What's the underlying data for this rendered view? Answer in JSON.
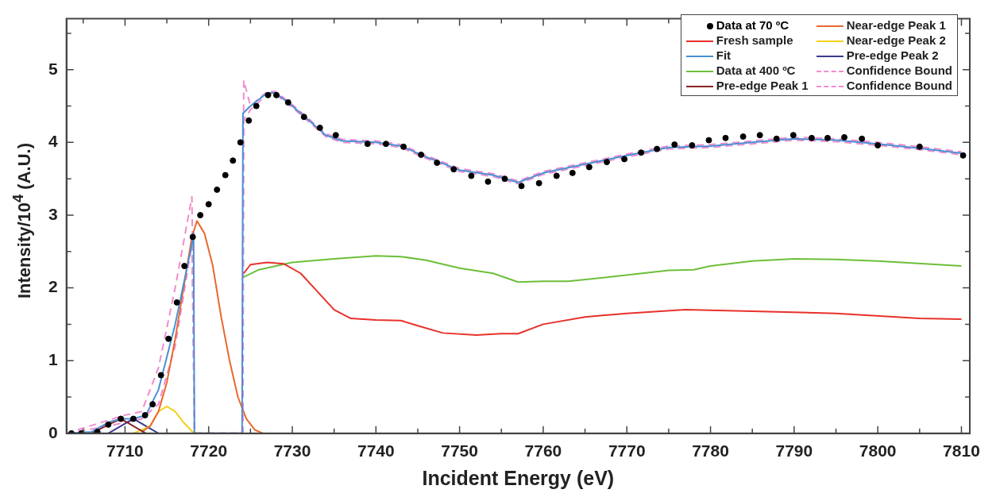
{
  "chart_data": {
    "type": "line",
    "xlabel": "Incident Energy (eV)",
    "ylabel": "Intensity/10$^{4}$ (A.U.)",
    "xlim": [
      7703,
      7811
    ],
    "ylim": [
      0,
      5.7
    ],
    "xticks": [
      {
        "value": 7705,
        "label": null
      },
      7710,
      {
        "value": 7715,
        "label": null
      },
      7720,
      {
        "value": 7725,
        "label": null
      },
      7730,
      {
        "value": 7735,
        "label": null
      },
      7740,
      {
        "value": 7745,
        "label": null
      },
      7750,
      {
        "value": 7755,
        "label": null
      },
      7760,
      {
        "value": 7765,
        "label": null
      },
      7770,
      {
        "value": 7775,
        "label": null
      },
      7780,
      {
        "value": 7785,
        "label": null
      },
      7790,
      {
        "value": 7795,
        "label": null
      },
      7800,
      {
        "value": 7805,
        "label": null
      },
      7810
    ],
    "yticks": [
      0,
      {
        "value": 0.5,
        "label": null
      },
      1,
      {
        "value": 1.5,
        "label": null
      },
      2,
      {
        "value": 2.5,
        "label": null
      },
      3,
      {
        "value": 3.5,
        "label": null
      },
      4,
      {
        "value": 4.5,
        "label": null
      },
      5,
      {
        "value": 5.5,
        "label": null
      }
    ],
    "legend": "top right",
    "series": [
      {
        "name": "Data at 70 ºC",
        "type": "scatter",
        "marker": "circle",
        "color": "#000000",
        "x": [
          7703.6,
          7704.8,
          7706.7,
          7708,
          7709.5,
          7711,
          7712.4,
          7713.3,
          7714.3,
          7715.2,
          7716.2,
          7717.1,
          7718.1,
          7719,
          7720,
          7721,
          7722,
          7722.9,
          7723.8,
          7724.8,
          7725.7,
          7727.1,
          7728.1,
          7729.5,
          7731.4,
          7733.3,
          7735.2,
          7739,
          7741.2,
          7743.3,
          7745.4,
          7747.3,
          7749.3,
          7751.4,
          7753.4,
          7755.4,
          7757.4,
          7759.5,
          7761.6,
          7763.5,
          7765.5,
          7767.6,
          7769.7,
          7771.7,
          7773.6,
          7775.7,
          7777.8,
          7779.8,
          7781.8,
          7783.9,
          7785.9,
          7787.9,
          7789.9,
          7792.1,
          7794,
          7796,
          7798.1,
          7800,
          7805,
          7810.2
        ],
        "values": [
          0,
          0,
          0.02,
          0.12,
          0.2,
          0.2,
          0.25,
          0.4,
          0.8,
          1.3,
          1.8,
          2.3,
          2.7,
          3.0,
          3.15,
          3.35,
          3.55,
          3.75,
          4.0,
          4.3,
          4.5,
          4.65,
          4.65,
          4.55,
          4.35,
          4.2,
          4.1,
          3.98,
          3.98,
          3.94,
          3.83,
          3.72,
          3.63,
          3.54,
          3.46,
          3.5,
          3.4,
          3.44,
          3.54,
          3.58,
          3.66,
          3.73,
          3.77,
          3.86,
          3.91,
          3.97,
          3.96,
          4.03,
          4.06,
          4.08,
          4.1,
          4.05,
          4.1,
          4.06,
          4.06,
          4.07,
          4.05,
          3.96,
          3.94,
          3.82
        ]
      },
      {
        "name": "Fresh sample",
        "color": "#e8312a",
        "x": [
          7724.2,
          7725,
          7727,
          7729,
          7731,
          7733,
          7735,
          7737,
          7740,
          7743,
          7745,
          7748,
          7752,
          7755,
          7757,
          7760,
          7765,
          7770,
          7777,
          7785,
          7795,
          7805,
          7810
        ],
        "values": [
          2.2,
          2.32,
          2.35,
          2.33,
          2.2,
          1.95,
          1.7,
          1.58,
          1.56,
          1.55,
          1.48,
          1.38,
          1.35,
          1.37,
          1.37,
          1.5,
          1.6,
          1.65,
          1.7,
          1.68,
          1.65,
          1.58,
          1.57
        ]
      },
      {
        "name": "Fit",
        "color": "#4a8fd4",
        "x": [
          7703,
          7706,
          7708,
          7709.5,
          7711,
          7712.5,
          7714,
          7716,
          7718,
          7718.2,
          7718.3,
          7724,
          7724.1,
          7725,
          7727,
          7728,
          7730,
          7732,
          7734,
          7736,
          7740,
          7743,
          7746,
          7750,
          7754,
          7757,
          7760,
          7765,
          7770,
          7775,
          7780,
          7785,
          7790,
          7795,
          7800,
          7805,
          7810
        ],
        "values": [
          0,
          0.02,
          0.15,
          0.2,
          0.2,
          0.25,
          0.6,
          1.5,
          2.6,
          2.75,
          0,
          0,
          4.4,
          4.5,
          4.68,
          4.68,
          4.5,
          4.3,
          4.1,
          4.02,
          4.0,
          3.95,
          3.8,
          3.62,
          3.55,
          3.45,
          3.58,
          3.7,
          3.82,
          3.93,
          3.95,
          4.0,
          4.05,
          4.03,
          3.98,
          3.92,
          3.85
        ]
      },
      {
        "name": "Data at 400 ºC",
        "color": "#6cbf3a",
        "x": [
          7724.2,
          7726,
          7730,
          7735,
          7740,
          7743,
          7746,
          7750,
          7754,
          7757,
          7760,
          7763,
          7768,
          7775,
          7778,
          7780,
          7785,
          7790,
          7795,
          7800,
          7810
        ],
        "values": [
          2.15,
          2.25,
          2.35,
          2.4,
          2.44,
          2.43,
          2.38,
          2.27,
          2.2,
          2.08,
          2.09,
          2.09,
          2.15,
          2.24,
          2.25,
          2.3,
          2.37,
          2.4,
          2.39,
          2.37,
          2.3
        ]
      },
      {
        "name": "Pre-edge Peak 1",
        "color": "#8b2323",
        "x": [
          7706,
          7708,
          7709.5,
          7711,
          7712.5
        ],
        "values": [
          0,
          0.12,
          0.2,
          0.1,
          0
        ]
      },
      {
        "name": "Near-edge Peak 1",
        "color": "#e8692c",
        "x": [
          7712,
          7713,
          7714,
          7715,
          7716,
          7717,
          7718,
          7718.6,
          7719.5,
          7720.5,
          7721.5,
          7722.5,
          7723.5,
          7724.5,
          7725.5,
          7726.5
        ],
        "values": [
          0.02,
          0.1,
          0.3,
          0.7,
          1.3,
          2.0,
          2.7,
          2.92,
          2.75,
          2.3,
          1.6,
          1.0,
          0.5,
          0.2,
          0.05,
          0
        ]
      },
      {
        "name": "Near-edge Peak 2",
        "color": "#f2d21b",
        "x": [
          7711,
          7713,
          7714,
          7715,
          7716,
          7717,
          7718,
          7718.3
        ],
        "values": [
          0,
          0.1,
          0.3,
          0.37,
          0.3,
          0.15,
          0.03,
          0
        ]
      },
      {
        "name": "Pre-edge Peak 2",
        "color": "#3a3a8c",
        "x": [
          7708,
          7709.5,
          7711,
          7712.5,
          7714
        ],
        "values": [
          0,
          0.1,
          0.2,
          0.1,
          0
        ]
      },
      {
        "name": "Confidence Bound",
        "color": "#f08ccf",
        "line_style": "dashed",
        "x": [
          7703,
          7708,
          7710,
          7712,
          7714,
          7716,
          7718,
          7718.3,
          7724,
          7724.2,
          7725,
          7727,
          7728,
          7730,
          7732,
          7734,
          7736,
          7740,
          7743,
          7746,
          7750,
          7754,
          7757,
          7760,
          7765,
          7770,
          7775,
          7780,
          7785,
          7790,
          7795,
          7800,
          7805,
          7810
        ],
        "values": [
          0,
          0.18,
          0.25,
          0.3,
          0.9,
          2.0,
          3.25,
          0,
          0,
          4.85,
          4.5,
          4.7,
          4.7,
          4.52,
          4.32,
          4.12,
          4.04,
          4.02,
          3.97,
          3.82,
          3.64,
          3.57,
          3.47,
          3.6,
          3.72,
          3.84,
          3.95,
          3.97,
          4.02,
          4.07,
          4.05,
          4.0,
          3.94,
          3.87
        ]
      },
      {
        "name": "Confidence Bound",
        "color": "#f08ccf",
        "line_style": "dashed",
        "x": [
          7703,
          7708,
          7712,
          7714,
          7716,
          7718,
          7718.3,
          7724.1,
          7724.2,
          7725,
          7727,
          7728,
          7730,
          7732,
          7734,
          7736,
          7740,
          7743,
          7746,
          7750,
          7754,
          7757,
          7760,
          7765,
          7770,
          7775,
          7780,
          7785,
          7790,
          7795,
          7800,
          7805,
          7810
        ],
        "values": [
          0,
          0.1,
          0.2,
          0.4,
          1.2,
          2.6,
          0,
          0,
          4.3,
          4.45,
          4.66,
          4.66,
          4.48,
          4.28,
          4.08,
          4.0,
          3.98,
          3.93,
          3.78,
          3.6,
          3.53,
          3.43,
          3.56,
          3.68,
          3.8,
          3.91,
          3.93,
          3.98,
          4.03,
          4.01,
          3.96,
          3.9,
          3.83
        ]
      }
    ]
  }
}
